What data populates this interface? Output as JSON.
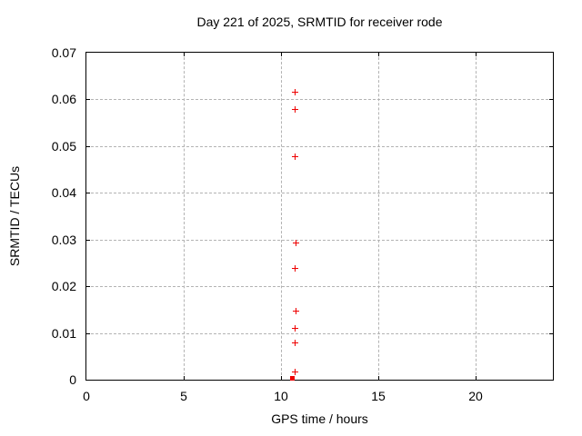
{
  "chart_data": {
    "type": "scatter",
    "title": "Day 221 of 2025, SRMTID for receiver rode",
    "xlabel": "GPS time / hours",
    "ylabel": "SRMTID / TECUs",
    "xlim": [
      0,
      24
    ],
    "ylim": [
      0,
      0.07
    ],
    "x_ticks": [
      {
        "v": 0,
        "label": "0"
      },
      {
        "v": 5,
        "label": "5"
      },
      {
        "v": 10,
        "label": "10"
      },
      {
        "v": 15,
        "label": "15"
      },
      {
        "v": 20,
        "label": "20"
      }
    ],
    "y_ticks": [
      {
        "v": 0,
        "label": "0"
      },
      {
        "v": 0.01,
        "label": "0.01"
      },
      {
        "v": 0.02,
        "label": "0.02"
      },
      {
        "v": 0.03,
        "label": "0.03"
      },
      {
        "v": 0.04,
        "label": "0.04"
      },
      {
        "v": 0.05,
        "label": "0.05"
      },
      {
        "v": 0.06,
        "label": "0.06"
      },
      {
        "v": 0.07,
        "label": "0.07"
      }
    ],
    "grid": true,
    "legend": "none",
    "colors": {
      "marker": "#ee0000",
      "grid": "#b3b3b3",
      "axis": "#000000",
      "background": "#ffffff"
    },
    "series": [
      {
        "name": "srmtid-points",
        "marker": "plus",
        "points": [
          [
            10.72,
            0.0616
          ],
          [
            10.7,
            0.058
          ],
          [
            10.73,
            0.0478
          ],
          [
            10.75,
            0.0293
          ],
          [
            10.7,
            0.024
          ],
          [
            10.75,
            0.0147
          ],
          [
            10.7,
            0.011
          ],
          [
            10.73,
            0.0079
          ],
          [
            10.73,
            0.0018
          ]
        ]
      },
      {
        "name": "srmtid-zero-cluster",
        "marker": "filled-square",
        "points": [
          [
            10.58,
            0.0003
          ]
        ]
      }
    ]
  }
}
